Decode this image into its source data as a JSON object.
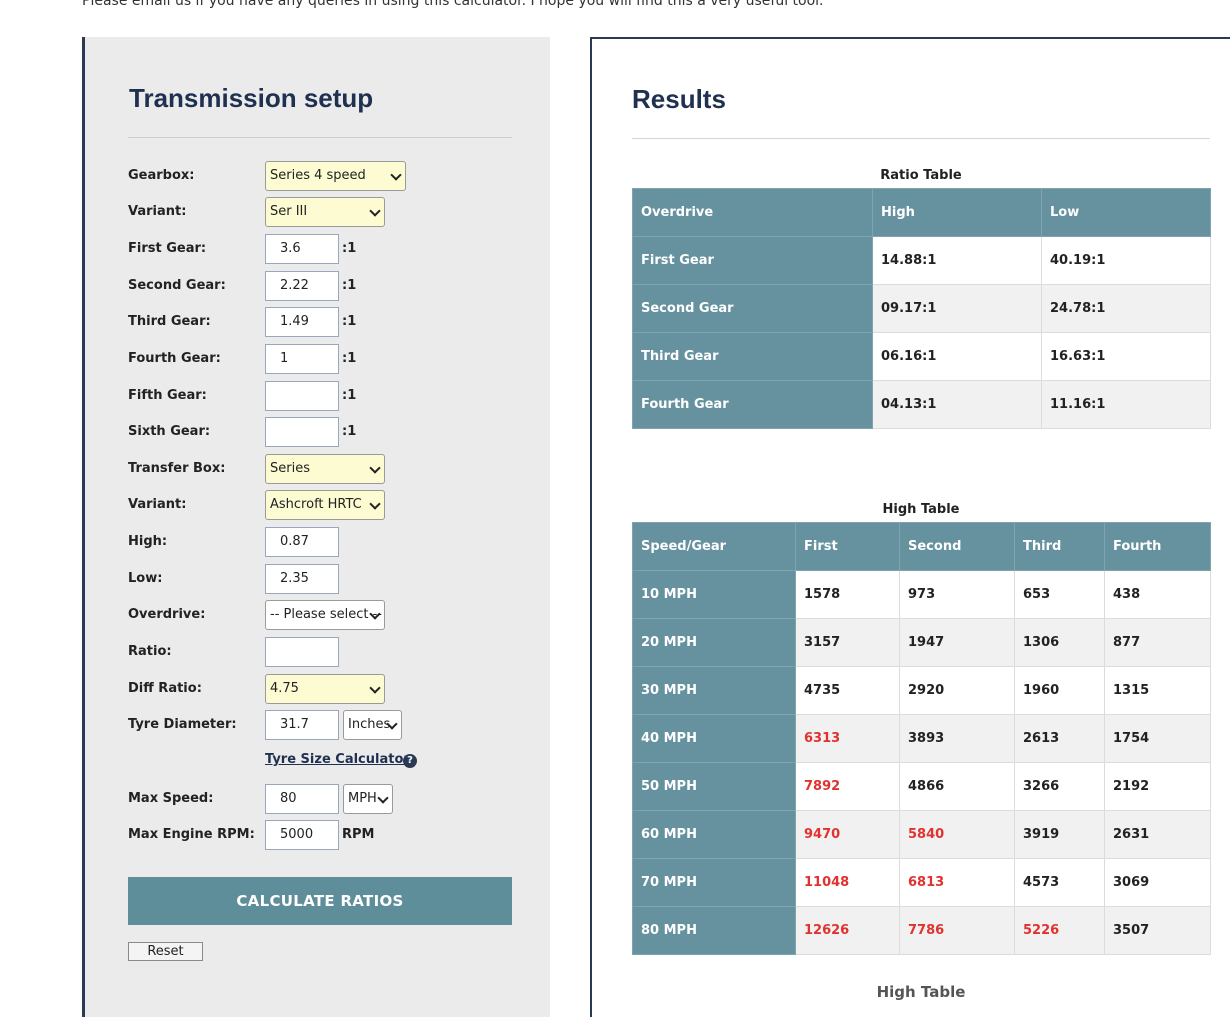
{
  "intro_text": "Please email us if you have any queries in using this calculator. I hope you will find this a very useful tool.",
  "setup": {
    "title": "Transmission setup",
    "gearbox_label": "Gearbox:",
    "gearbox_value": "Series 4 speed",
    "variant_label": "Variant:",
    "variant_value": "Ser III",
    "first_gear_label": "First Gear:",
    "first_gear_value": "3.6",
    "second_gear_label": "Second Gear:",
    "second_gear_value": "2.22",
    "third_gear_label": "Third Gear:",
    "third_gear_value": "1.49",
    "fourth_gear_label": "Fourth Gear:",
    "fourth_gear_value": "1",
    "fifth_gear_label": "Fifth Gear:",
    "fifth_gear_value": "",
    "sixth_gear_label": "Sixth Gear:",
    "sixth_gear_value": "",
    "ratio_suffix": ":1",
    "transfer_box_label": "Transfer Box:",
    "transfer_box_value": "Series",
    "transfer_variant_label": "Variant:",
    "transfer_variant_value": "Ashcroft HRTC",
    "high_label": "High:",
    "high_value": "0.87",
    "low_label": "Low:",
    "low_value": "2.35",
    "overdrive_label": "Overdrive:",
    "overdrive_value": "-- Please select --",
    "ratio_label": "Ratio:",
    "ratio_value": "",
    "diff_ratio_label": "Diff Ratio:",
    "diff_ratio_value": "4.75",
    "tyre_diameter_label": "Tyre Diameter:",
    "tyre_diameter_value": "31.7",
    "tyre_unit_value": "Inches",
    "tyre_calc_link": "Tyre Size Calculator",
    "help_glyph": "?",
    "max_speed_label": "Max Speed:",
    "max_speed_value": "80",
    "speed_unit_value": "MPH",
    "max_rpm_label": "Max Engine RPM:",
    "max_rpm_value": "5000",
    "rpm_suffix": "RPM",
    "calculate_label": "CALCULATE RATIOS",
    "reset_label": "Reset"
  },
  "results": {
    "title": "Results",
    "ratio_table": {
      "caption": "Ratio Table",
      "headers": [
        "Overdrive",
        "High",
        "Low"
      ],
      "rows": [
        [
          "First Gear",
          "14.88:1",
          "40.19:1"
        ],
        [
          "Second Gear",
          "09.17:1",
          "24.78:1"
        ],
        [
          "Third Gear",
          "06.16:1",
          "16.63:1"
        ],
        [
          "Fourth Gear",
          "04.13:1",
          "11.16:1"
        ]
      ]
    },
    "high_table": {
      "caption": "High Table",
      "headers": [
        "Speed/Gear",
        "First",
        "Second",
        "Third",
        "Fourth"
      ],
      "rows": [
        [
          "10 MPH",
          "1578",
          "973",
          "653",
          "438"
        ],
        [
          "20 MPH",
          "3157",
          "1947",
          "1306",
          "877"
        ],
        [
          "30 MPH",
          "4735",
          "2920",
          "1960",
          "1315"
        ],
        [
          "40 MPH",
          "6313",
          "3893",
          "2613",
          "1754"
        ],
        [
          "50 MPH",
          "7892",
          "4866",
          "3266",
          "2192"
        ],
        [
          "60 MPH",
          "9470",
          "5840",
          "3919",
          "2631"
        ],
        [
          "70 MPH",
          "11048",
          "6813",
          "4573",
          "3069"
        ],
        [
          "80 MPH",
          "12626",
          "7786",
          "5226",
          "3507"
        ]
      ]
    },
    "next_caption": "High Table"
  },
  "colors": {
    "header_teal": "#6692a0",
    "button_teal": "#5f8e9b",
    "title_navy": "#1f3050",
    "over_rpm_red": "#e0322f"
  }
}
